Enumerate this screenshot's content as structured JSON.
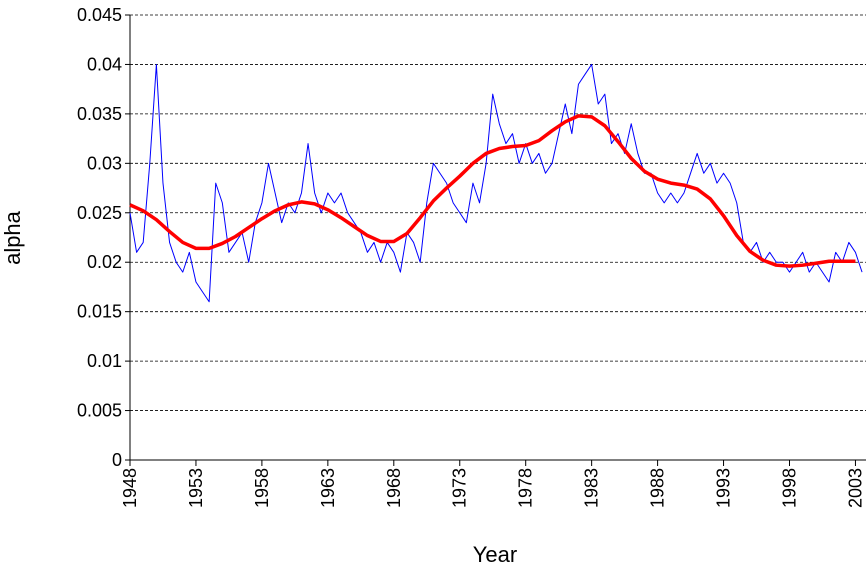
{
  "chart_data": {
    "type": "line",
    "x_label": "Year",
    "y_label": "alpha",
    "xlim": [
      1948,
      2003.8
    ],
    "xticks": [
      1948,
      1953,
      1958,
      1963,
      1968,
      1973,
      1978,
      1983,
      1988,
      1993,
      1998,
      2003
    ],
    "ylim": [
      0,
      0.045
    ],
    "yticks": [
      0,
      0.005,
      0.01,
      0.015,
      0.02,
      0.025,
      0.03,
      0.035,
      0.04,
      0.045
    ],
    "grid": true,
    "series": [
      {
        "color": "#0000ff",
        "x": [
          1948,
          1948.5,
          1949,
          1949.5,
          1950,
          1950.5,
          1951,
          1951.5,
          1952,
          1952.5,
          1953,
          1953.5,
          1954,
          1954.5,
          1955,
          1955.5,
          1956,
          1956.5,
          1957,
          1957.5,
          1958,
          1958.5,
          1959,
          1959.5,
          1960,
          1960.5,
          1961,
          1961.5,
          1962,
          1962.5,
          1963,
          1963.5,
          1964,
          1964.5,
          1965,
          1965.5,
          1966,
          1966.5,
          1967,
          1967.5,
          1968,
          1968.5,
          1969,
          1969.5,
          1970,
          1970.5,
          1971,
          1971.5,
          1972,
          1972.5,
          1973,
          1973.5,
          1974,
          1974.5,
          1975,
          1975.5,
          1976,
          1976.5,
          1977,
          1977.5,
          1978,
          1978.5,
          1979,
          1979.5,
          1980,
          1980.5,
          1981,
          1981.5,
          1982,
          1982.5,
          1983,
          1983.5,
          1984,
          1984.5,
          1985,
          1985.5,
          1986,
          1986.5,
          1987,
          1987.5,
          1988,
          1988.5,
          1989,
          1989.5,
          1990,
          1990.5,
          1991,
          1991.5,
          1992,
          1992.5,
          1993,
          1993.5,
          1994,
          1994.5,
          1995,
          1995.5,
          1996,
          1996.5,
          1997,
          1997.5,
          1998,
          1998.5,
          1999,
          1999.5,
          2000,
          2000.5,
          2001,
          2001.5,
          2002,
          2002.5,
          2003,
          2003.5
        ],
        "values": [
          0.025,
          0.021,
          0.022,
          0.03,
          0.04,
          0.028,
          0.022,
          0.02,
          0.019,
          0.021,
          0.018,
          0.017,
          0.016,
          0.028,
          0.026,
          0.021,
          0.022,
          0.023,
          0.02,
          0.024,
          0.026,
          0.03,
          0.027,
          0.024,
          0.026,
          0.025,
          0.027,
          0.032,
          0.027,
          0.025,
          0.027,
          0.026,
          0.027,
          0.025,
          0.024,
          0.023,
          0.021,
          0.022,
          0.02,
          0.022,
          0.021,
          0.019,
          0.023,
          0.022,
          0.02,
          0.026,
          0.03,
          0.029,
          0.028,
          0.026,
          0.025,
          0.024,
          0.028,
          0.026,
          0.03,
          0.037,
          0.034,
          0.032,
          0.033,
          0.03,
          0.032,
          0.03,
          0.031,
          0.029,
          0.03,
          0.033,
          0.036,
          0.033,
          0.038,
          0.039,
          0.04,
          0.036,
          0.037,
          0.032,
          0.033,
          0.031,
          0.034,
          0.031,
          0.029,
          0.029,
          0.027,
          0.026,
          0.027,
          0.026,
          0.027,
          0.029,
          0.031,
          0.029,
          0.03,
          0.028,
          0.029,
          0.028,
          0.026,
          0.022,
          0.021,
          0.022,
          0.02,
          0.021,
          0.02,
          0.02,
          0.019,
          0.02,
          0.021,
          0.019,
          0.02,
          0.019,
          0.018,
          0.021,
          0.02,
          0.022,
          0.021,
          0.019
        ]
      },
      {
        "color": "#ff0000",
        "x": [
          1948,
          1949,
          1950,
          1951,
          1952,
          1953,
          1954,
          1955,
          1956,
          1957,
          1958,
          1959,
          1960,
          1961,
          1962,
          1963,
          1964,
          1965,
          1966,
          1967,
          1968,
          1969,
          1970,
          1971,
          1972,
          1973,
          1974,
          1975,
          1976,
          1977,
          1978,
          1979,
          1980,
          1981,
          1982,
          1983,
          1984,
          1985,
          1986,
          1987,
          1988,
          1989,
          1990,
          1991,
          1992,
          1993,
          1994,
          1995,
          1996,
          1997,
          1998,
          1999,
          2000,
          2001,
          2002,
          2003
        ],
        "values": [
          0.0258,
          0.0252,
          0.0243,
          0.0231,
          0.022,
          0.0214,
          0.0214,
          0.0219,
          0.0226,
          0.0235,
          0.0244,
          0.0252,
          0.0258,
          0.0261,
          0.0259,
          0.0253,
          0.0245,
          0.0236,
          0.0227,
          0.0221,
          0.0221,
          0.0229,
          0.0245,
          0.0262,
          0.0275,
          0.0287,
          0.03,
          0.031,
          0.0315,
          0.0317,
          0.0318,
          0.0323,
          0.0333,
          0.0342,
          0.0348,
          0.0347,
          0.0338,
          0.0322,
          0.0305,
          0.0292,
          0.0284,
          0.028,
          0.0278,
          0.0274,
          0.0264,
          0.0247,
          0.0227,
          0.0211,
          0.0202,
          0.0197,
          0.0196,
          0.0197,
          0.0199,
          0.0201,
          0.0201,
          0.0201
        ]
      }
    ]
  }
}
